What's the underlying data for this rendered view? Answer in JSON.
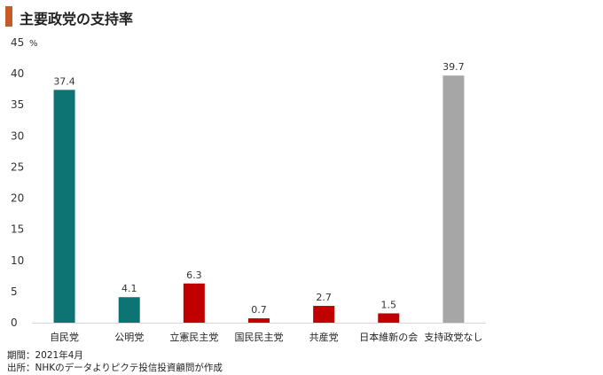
{
  "title": "主要政党の支持率",
  "colors": {
    "title_bar": "#c65a28",
    "teal": "#0e7373",
    "red": "#c00000",
    "gray": "#a6a6a6",
    "axis": "#d9d9d9"
  },
  "notes": {
    "period": "期間：2021年4月",
    "source": "出所：NHKのデータよりピクテ投信投資顧問が作成"
  },
  "chart_data": {
    "type": "bar",
    "title": "主要政党の支持率",
    "ylabel": "",
    "unit": "%",
    "ylim": [
      0,
      45
    ],
    "yticks": [
      "0",
      "5",
      "10",
      "15",
      "20",
      "25",
      "30",
      "35",
      "40",
      "45"
    ],
    "grid": false,
    "categories": [
      "自民党",
      "公明党",
      "立憲民主党",
      "国民民主党",
      "共産党",
      "日本維新の会",
      "支持政党なし"
    ],
    "values": [
      37.4,
      4.1,
      6.3,
      0.7,
      2.7,
      1.5,
      39.7
    ],
    "labels": [
      "37.4",
      "4.1",
      "6.3",
      "0.7",
      "2.7",
      "1.5",
      "39.7"
    ],
    "bar_colors": [
      "#0e7373",
      "#0e7373",
      "#c00000",
      "#c00000",
      "#c00000",
      "#c00000",
      "#a6a6a6"
    ]
  }
}
